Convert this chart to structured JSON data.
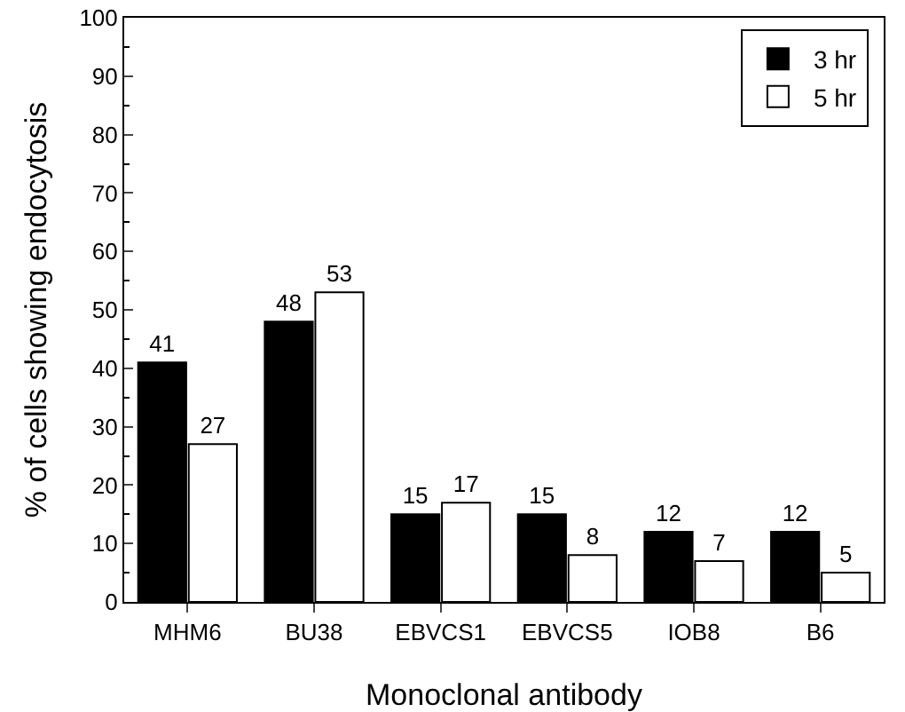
{
  "chart_data": {
    "type": "bar",
    "xlabel": "Monoclonal antibody",
    "ylabel": "% of cells showing endocytosis",
    "categories": [
      "MHM6",
      "BU38",
      "EBVCS1",
      "EBVCS5",
      "IOB8",
      "B6"
    ],
    "series": [
      {
        "name": "3 hr",
        "color": "#000000",
        "values": [
          41,
          48,
          15,
          15,
          12,
          12
        ]
      },
      {
        "name": "5 hr",
        "color": "#ffffff",
        "values": [
          27,
          53,
          17,
          8,
          7,
          5
        ]
      }
    ],
    "ylim": [
      0,
      100
    ],
    "yticks": [
      0,
      10,
      20,
      30,
      40,
      50,
      60,
      70,
      80,
      90,
      100
    ],
    "data_labels": true,
    "legend": "top right",
    "grid": false
  }
}
